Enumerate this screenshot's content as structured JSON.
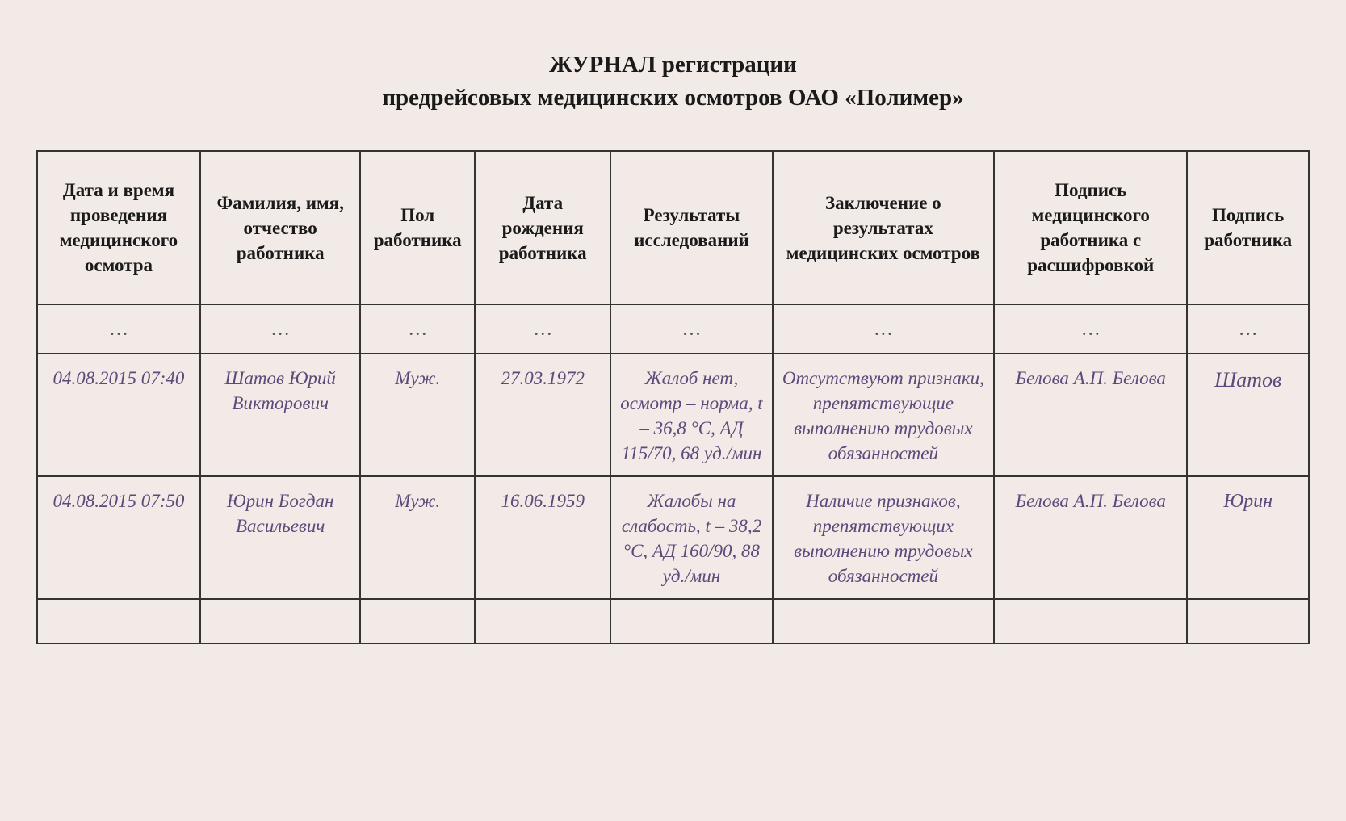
{
  "styling": {
    "background_color": "#f2eae6",
    "border_color": "#333333",
    "header_text_color": "#1a1a1a",
    "data_text_color": "#5b4a7a",
    "signature_worker1_color": "#5b7a9a",
    "signature_worker2_color": "#3a3550",
    "title_fontsize": 29,
    "header_fontsize": 23,
    "cell_fontsize": 23,
    "column_widths_pct": [
      11.4,
      11.2,
      8,
      9.5,
      11.3,
      15.5,
      13.5,
      8.5
    ]
  },
  "title": {
    "line1": "ЖУРНАЛ регистрации",
    "line2": "предрейсовых медицинских осмотров ОАО «Полимер»"
  },
  "table": {
    "columns": [
      "Дата и время проведения медицинского осмотра",
      "Фамилия, имя, отчество работника",
      "Пол работника",
      "Дата рождения работника",
      "Результаты исследований",
      "Заключение о результатах медицинских осмотров",
      "Подпись медицинского работника с расшифровкой",
      "Подпись работ­ника"
    ],
    "ellipsis": "…",
    "rows": [
      {
        "datetime": "04.08.2015 07:40",
        "name": "Шатов Юрий Викторович",
        "gender": "Муж.",
        "dob": "27.03.1972",
        "results": "Жалоб нет, осмотр – норма, t – 36,8 °C, АД 115/70, 68 уд./мин",
        "conclusion": "Отсутствуют признаки, препятствующие выполнению трудовых обязанностей",
        "med_signature": "Белова А.П. Белова",
        "worker_signature": "Шатов"
      },
      {
        "datetime": "04.08.2015 07:50",
        "name": "Юрин Богдан Васильевич",
        "gender": "Муж.",
        "dob": "16.06.1959",
        "results": "Жалобы на слабость, t – 38,2 °C, АД 160/90, 88 уд./мин",
        "conclusion": "Наличие признаков, препятствующих выполнению трудовых обязанностей",
        "med_signature": "Белова А.П. Белова",
        "worker_signature": "Юрин"
      }
    ]
  }
}
